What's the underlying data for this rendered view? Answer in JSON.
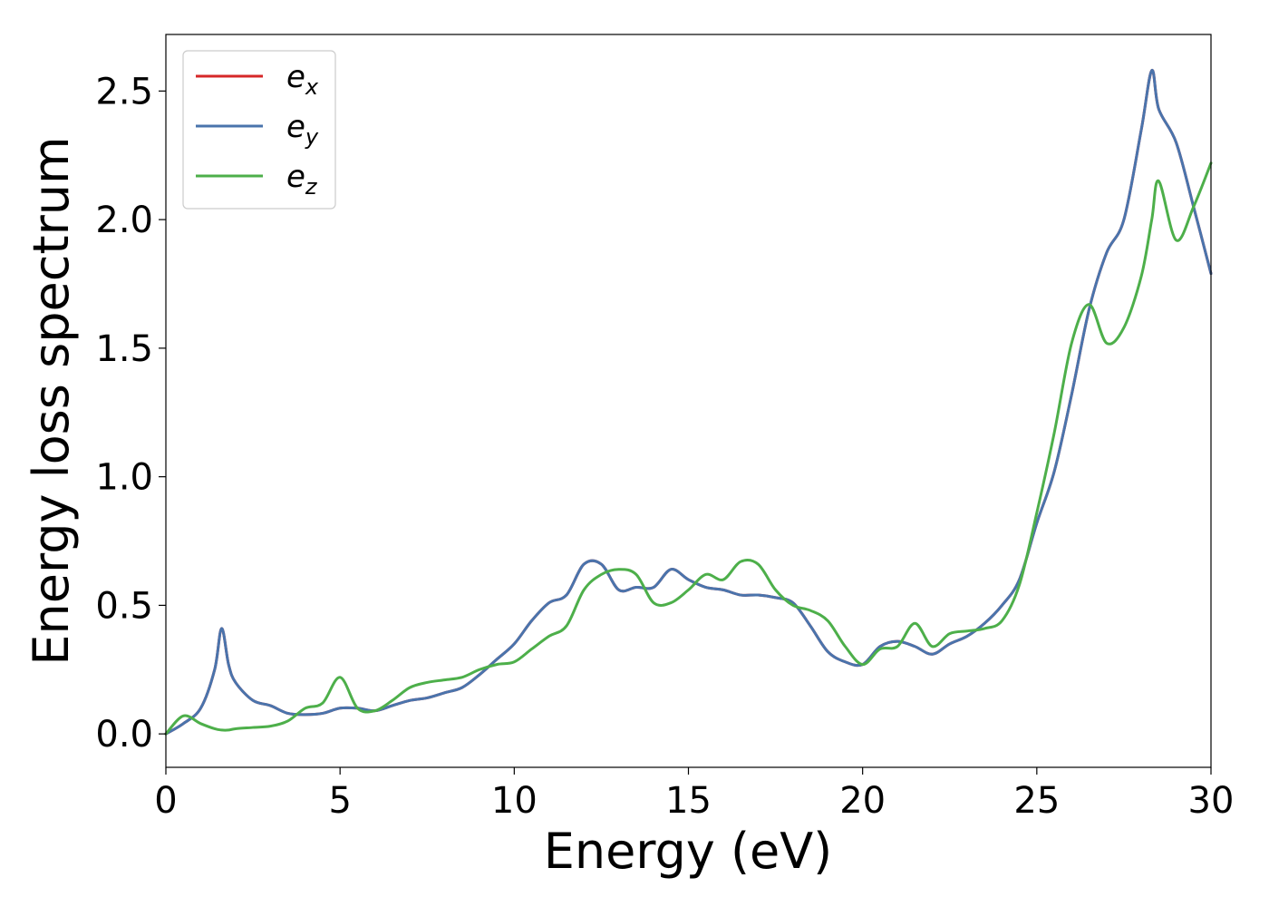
{
  "chart_data": {
    "type": "line",
    "title": "",
    "xlabel": "Energy (eV)",
    "ylabel": "Energy loss spectrum",
    "xlim": [
      0,
      30
    ],
    "ylim": [
      -0.13,
      2.72
    ],
    "xticks": [
      0,
      5,
      10,
      15,
      20,
      25,
      30
    ],
    "yticks": [
      0.0,
      0.5,
      1.0,
      1.5,
      2.0,
      2.5
    ],
    "xtick_labels": [
      "0",
      "5",
      "10",
      "15",
      "20",
      "25",
      "30"
    ],
    "ytick_labels": [
      "0.0",
      "0.5",
      "1.0",
      "1.5",
      "2.0",
      "2.5"
    ],
    "grid": false,
    "legend_position": "top-left",
    "x": [
      0.0,
      0.5,
      1.0,
      1.4,
      1.6,
      1.8,
      2.0,
      2.5,
      3.0,
      3.5,
      4.0,
      4.5,
      5.0,
      5.5,
      6.0,
      6.5,
      7.0,
      7.5,
      8.0,
      8.5,
      9.0,
      9.5,
      10.0,
      10.5,
      11.0,
      11.5,
      12.0,
      12.5,
      13.0,
      13.5,
      14.0,
      14.5,
      15.0,
      15.5,
      16.0,
      16.5,
      17.0,
      17.5,
      18.0,
      18.5,
      19.0,
      19.5,
      20.0,
      20.5,
      21.0,
      21.5,
      22.0,
      22.5,
      23.0,
      23.5,
      24.0,
      24.5,
      25.0,
      25.5,
      26.0,
      26.5,
      27.0,
      27.5,
      28.0,
      28.3,
      28.5,
      29.0,
      29.5,
      30.0
    ],
    "series": [
      {
        "name": "e_x",
        "color": "#d62728",
        "values": [
          0.0,
          0.04,
          0.1,
          0.25,
          0.41,
          0.27,
          0.2,
          0.13,
          0.11,
          0.08,
          0.075,
          0.08,
          0.1,
          0.1,
          0.09,
          0.11,
          0.13,
          0.14,
          0.16,
          0.18,
          0.23,
          0.29,
          0.35,
          0.44,
          0.51,
          0.54,
          0.66,
          0.66,
          0.56,
          0.57,
          0.57,
          0.64,
          0.6,
          0.57,
          0.56,
          0.54,
          0.54,
          0.53,
          0.51,
          0.42,
          0.32,
          0.28,
          0.27,
          0.34,
          0.36,
          0.34,
          0.31,
          0.35,
          0.38,
          0.43,
          0.5,
          0.6,
          0.82,
          1.02,
          1.32,
          1.65,
          1.87,
          2.0,
          2.35,
          2.58,
          2.43,
          2.3,
          2.05,
          1.79
        ]
      },
      {
        "name": "e_y",
        "color": "#4a74ac",
        "values": [
          0.0,
          0.04,
          0.1,
          0.25,
          0.41,
          0.27,
          0.2,
          0.13,
          0.11,
          0.08,
          0.075,
          0.08,
          0.1,
          0.1,
          0.09,
          0.11,
          0.13,
          0.14,
          0.16,
          0.18,
          0.23,
          0.29,
          0.35,
          0.44,
          0.51,
          0.54,
          0.66,
          0.66,
          0.56,
          0.57,
          0.57,
          0.64,
          0.6,
          0.57,
          0.56,
          0.54,
          0.54,
          0.53,
          0.51,
          0.42,
          0.32,
          0.28,
          0.27,
          0.34,
          0.36,
          0.34,
          0.31,
          0.35,
          0.38,
          0.43,
          0.5,
          0.6,
          0.82,
          1.02,
          1.32,
          1.65,
          1.87,
          2.0,
          2.35,
          2.58,
          2.43,
          2.3,
          2.05,
          1.79
        ]
      },
      {
        "name": "e_z",
        "color": "#4daf4a",
        "values": [
          0.0,
          0.07,
          0.04,
          0.02,
          0.015,
          0.015,
          0.02,
          0.025,
          0.03,
          0.05,
          0.1,
          0.12,
          0.22,
          0.1,
          0.09,
          0.13,
          0.18,
          0.2,
          0.21,
          0.22,
          0.25,
          0.27,
          0.28,
          0.33,
          0.38,
          0.42,
          0.56,
          0.62,
          0.64,
          0.62,
          0.51,
          0.51,
          0.56,
          0.62,
          0.6,
          0.67,
          0.66,
          0.56,
          0.5,
          0.48,
          0.44,
          0.34,
          0.27,
          0.33,
          0.34,
          0.43,
          0.34,
          0.39,
          0.4,
          0.41,
          0.44,
          0.58,
          0.86,
          1.17,
          1.52,
          1.67,
          1.52,
          1.58,
          1.78,
          2.0,
          2.15,
          1.92,
          2.05,
          2.22
        ]
      }
    ]
  },
  "legend": {
    "items": [
      {
        "base": "e",
        "sub": "x",
        "color": "#d62728"
      },
      {
        "base": "e",
        "sub": "y",
        "color": "#4a74ac"
      },
      {
        "base": "e",
        "sub": "z",
        "color": "#4daf4a"
      }
    ]
  }
}
